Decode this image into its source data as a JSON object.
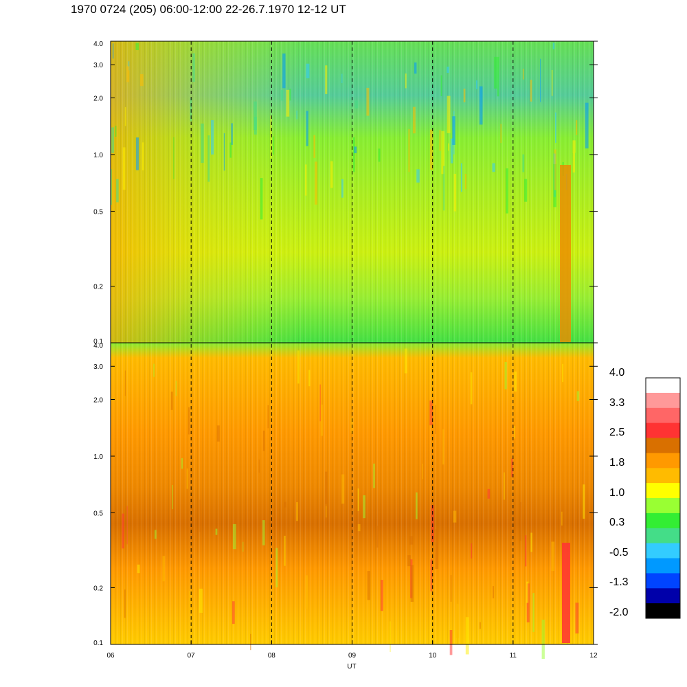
{
  "title": "1970 0724 (205) 06:00-12:00 22-26.7.1970  12-12 UT",
  "chart_data": {
    "type": "heatmap",
    "xlabel": "UT",
    "x_ticks": [
      "06",
      "07",
      "08",
      "09",
      "10",
      "11",
      "12"
    ],
    "xlim": [
      6,
      12
    ],
    "y_scale": "log",
    "ylim": [
      0.1,
      4.0
    ],
    "y_ticks": [
      "4.0",
      "3.0",
      "2.0",
      "1.0",
      "0.5",
      "0.2",
      "0.1"
    ],
    "y_tick_values": [
      4.0,
      3.0,
      2.0,
      1.0,
      0.5,
      0.2,
      0.1
    ],
    "dashed_vlines_at": [
      7,
      8,
      9,
      10,
      11
    ],
    "panels": [
      {
        "name": "upper",
        "dominant_level": 0.5,
        "note_band": "green/yellow, blue patches near top"
      },
      {
        "name": "lower",
        "dominant_level": 1.8,
        "note_band": "orange, dark orange band near 0.3-0.8"
      }
    ],
    "colorbar": {
      "levels_top_to_bottom": [
        "#ffffff",
        "#ff9999",
        "#ff6666",
        "#ff3333",
        "#d97000",
        "#ff9900",
        "#ffbb00",
        "#ffff00",
        "#99ff33",
        "#33ee33",
        "#44dd88",
        "#33ccff",
        "#0099ff",
        "#0044ff",
        "#0000aa",
        "#000000"
      ],
      "labels": [
        "4.0",
        "3.3",
        "2.5",
        "1.8",
        "1.0",
        "0.3",
        "-0.5",
        "-1.3",
        "-2.0"
      ]
    }
  }
}
